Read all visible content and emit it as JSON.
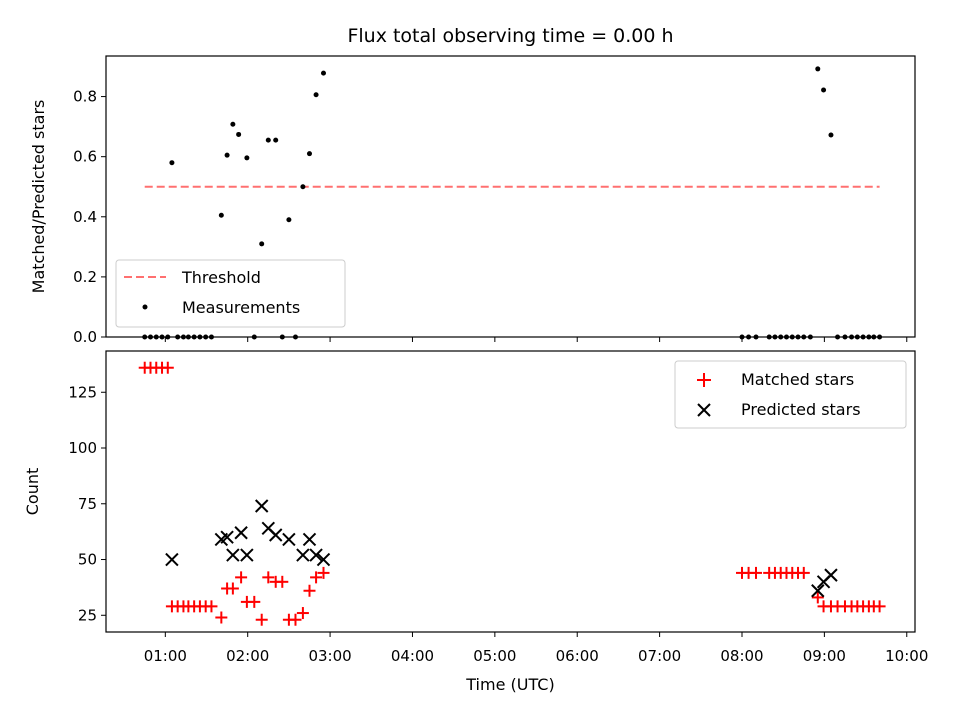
{
  "chart_data": {
    "title": "Flux total observing time = 0.00 h",
    "xlabel": "Time (UTC)",
    "xlim": [
      0.28,
      10.1
    ],
    "xtick_values": [
      1,
      2,
      3,
      4,
      5,
      6,
      7,
      8,
      9,
      10
    ],
    "xtick_labels": [
      "01:00",
      "02:00",
      "03:00",
      "04:00",
      "05:00",
      "06:00",
      "07:00",
      "08:00",
      "09:00",
      "10:00"
    ],
    "panels": [
      {
        "type": "scatter",
        "ylabel": "Matched/Predicted stars",
        "ylim": [
          0,
          0.935
        ],
        "ytick_values": [
          0,
          0.2,
          0.4,
          0.6,
          0.8
        ],
        "ytick_labels": [
          "0.0",
          "0.2",
          "0.4",
          "0.6",
          "0.8"
        ],
        "legend_position": "lower-left",
        "threshold": {
          "name": "Threshold",
          "value": 0.5,
          "x_range": [
            0.75,
            9.67
          ],
          "color": "#ff7070"
        },
        "series": [
          {
            "name": "Measurements",
            "marker": "dot",
            "color": "#000000",
            "x": [
              0.75,
              0.82,
              0.89,
              0.96,
              1.03,
              1.08,
              1.15,
              1.22,
              1.28,
              1.35,
              1.42,
              1.49,
              1.56,
              1.68,
              1.75,
              1.82,
              1.89,
              1.99,
              2.08,
              2.17,
              2.25,
              2.34,
              2.42,
              2.5,
              2.58,
              2.67,
              2.75,
              2.83,
              2.92,
              8.0,
              8.08,
              8.17,
              8.33,
              8.4,
              8.47,
              8.54,
              8.61,
              8.68,
              8.75,
              8.83,
              8.92,
              8.99,
              9.08,
              9.16,
              9.25,
              9.33,
              9.4,
              9.47,
              9.54,
              9.6,
              9.67
            ],
            "y": [
              0,
              0,
              0,
              0,
              0,
              0.58,
              0,
              0,
              0,
              0,
              0,
              0,
              0,
              0.405,
              0.605,
              0.708,
              0.674,
              0.596,
              0,
              0.31,
              0.655,
              0.655,
              0,
              0.39,
              0,
              0.5,
              0.61,
              0.806,
              0.878,
              0,
              0,
              0,
              0,
              0,
              0,
              0,
              0,
              0,
              0,
              0,
              0.892,
              0.822,
              0.672,
              0,
              0,
              0,
              0,
              0,
              0,
              0,
              0
            ]
          }
        ]
      },
      {
        "type": "scatter",
        "ylabel": "Count",
        "ylim": [
          17.5,
          143.5
        ],
        "ytick_values": [
          25,
          50,
          75,
          100,
          125
        ],
        "ytick_labels": [
          "25",
          "50",
          "75",
          "100",
          "125"
        ],
        "legend_position": "upper-right",
        "series": [
          {
            "name": "Matched stars",
            "marker": "plus",
            "color": "#ff0000",
            "x": [
              0.75,
              0.82,
              0.89,
              0.96,
              1.03,
              1.08,
              1.15,
              1.22,
              1.28,
              1.35,
              1.42,
              1.49,
              1.56,
              1.68,
              1.75,
              1.82,
              1.92,
              1.99,
              2.08,
              2.17,
              2.25,
              2.34,
              2.42,
              2.5,
              2.58,
              2.67,
              2.75,
              2.83,
              2.92,
              8.0,
              8.08,
              8.17,
              8.33,
              8.4,
              8.47,
              8.54,
              8.61,
              8.68,
              8.75,
              8.92,
              8.99,
              9.08,
              9.16,
              9.25,
              9.33,
              9.4,
              9.47,
              9.54,
              9.6,
              9.67
            ],
            "y": [
              136,
              136,
              136,
              136,
              136,
              29,
              29,
              29,
              29,
              29,
              29,
              29,
              29,
              24,
              37,
              37,
              42,
              31,
              31,
              23,
              42,
              40,
              40,
              23,
              23,
              26,
              36,
              42,
              44,
              44,
              44,
              44,
              44,
              44,
              44,
              44,
              44,
              44,
              44,
              33,
              29,
              29,
              29,
              29,
              29,
              29,
              29,
              29,
              29,
              29
            ]
          },
          {
            "name": "Predicted stars",
            "marker": "x",
            "color": "#000000",
            "x": [
              1.08,
              1.68,
              1.75,
              1.82,
              1.92,
              1.99,
              2.17,
              2.25,
              2.34,
              2.5,
              2.67,
              2.75,
              2.83,
              2.92,
              8.92,
              8.99,
              9.08
            ],
            "y": [
              50,
              59,
              60,
              52,
              62,
              52,
              74,
              64,
              61,
              59,
              52,
              59,
              52,
              50,
              36,
              40,
              43
            ]
          }
        ]
      }
    ]
  }
}
